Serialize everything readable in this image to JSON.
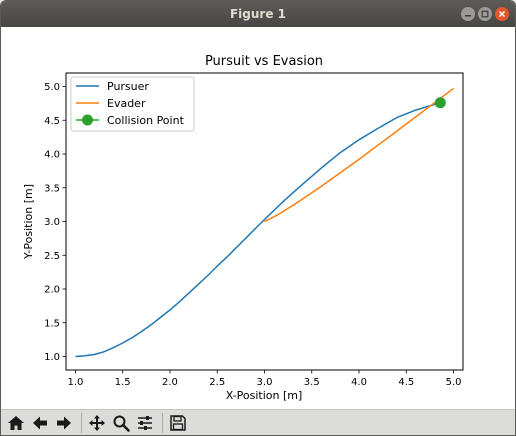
{
  "window": {
    "title": "Figure 1",
    "buttons": [
      "minimize-icon",
      "maximize-icon",
      "close-icon"
    ]
  },
  "toolbar": {
    "buttons": [
      "home-icon",
      "back-arrow-icon",
      "forward-arrow-icon",
      "pan-icon",
      "zoom-icon",
      "configure-subplots-icon",
      "save-icon"
    ]
  },
  "colors": {
    "pursuer": "#1f77b4",
    "evader": "#ff7f0e",
    "collision": "#2ca02c"
  },
  "chart_data": {
    "type": "line",
    "title": "Pursuit vs Evasion",
    "xlabel": "X-Position [m]",
    "ylabel": "Y-Position [m]",
    "xlim": [
      0.9,
      5.1
    ],
    "ylim": [
      0.8,
      5.2
    ],
    "xticks": [
      "1.0",
      "1.5",
      "2.0",
      "2.5",
      "3.0",
      "3.5",
      "4.0",
      "4.5",
      "5.0"
    ],
    "yticks": [
      "1.0",
      "1.5",
      "2.0",
      "2.5",
      "3.0",
      "3.5",
      "4.0",
      "4.5",
      "5.0"
    ],
    "grid": false,
    "legend_position": "top-left",
    "series": [
      {
        "name": "Pursuer",
        "x": [
          1.0,
          1.1,
          1.2,
          1.3,
          1.4,
          1.5,
          1.6,
          1.7,
          1.8,
          1.9,
          2.0,
          2.1,
          2.2,
          2.3,
          2.4,
          2.5,
          2.6,
          2.7,
          2.8,
          2.9,
          3.0,
          3.2,
          3.4,
          3.6,
          3.8,
          4.0,
          4.2,
          4.4,
          4.6,
          4.86
        ],
        "y": [
          1.0,
          1.01,
          1.03,
          1.07,
          1.13,
          1.2,
          1.28,
          1.37,
          1.47,
          1.58,
          1.69,
          1.81,
          1.94,
          2.07,
          2.2,
          2.34,
          2.47,
          2.61,
          2.75,
          2.89,
          3.03,
          3.3,
          3.55,
          3.79,
          4.02,
          4.21,
          4.38,
          4.54,
          4.65,
          4.76
        ]
      },
      {
        "name": "Evader",
        "x": [
          3.0,
          3.1,
          3.2,
          3.4,
          3.6,
          3.8,
          4.0,
          4.2,
          4.4,
          4.6,
          4.8,
          5.0
        ],
        "y": [
          3.0,
          3.07,
          3.15,
          3.33,
          3.52,
          3.72,
          3.92,
          4.13,
          4.34,
          4.55,
          4.76,
          4.97
        ]
      }
    ],
    "collision_point": {
      "name": "Collision Point",
      "x": 4.86,
      "y": 4.76
    }
  }
}
